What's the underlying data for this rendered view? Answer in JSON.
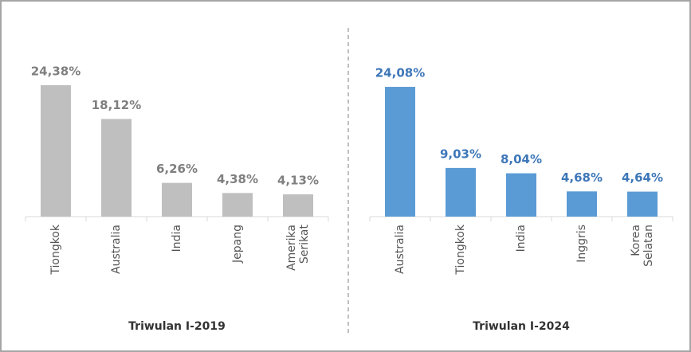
{
  "chart_data": [
    {
      "type": "bar",
      "title": "Triwulan I-2019",
      "categories": [
        "Tiongkok",
        "Australia",
        "India",
        "Jepang",
        "Amerika Serikat"
      ],
      "values": [
        24.38,
        18.12,
        6.26,
        4.38,
        4.13
      ],
      "value_labels": [
        "24,38%",
        "18,12%",
        "6,26%",
        "4,38%",
        "4,13%"
      ],
      "color": "#bfbfbf",
      "label_color": "#7f7f7f"
    },
    {
      "type": "bar",
      "title": "Triwulan I-2024",
      "categories": [
        "Australia",
        "Tiongkok",
        "India",
        "Inggris",
        "Korea Selatan"
      ],
      "values": [
        24.08,
        9.03,
        8.04,
        4.68,
        4.64
      ],
      "value_labels": [
        "24,08%",
        "9,03%",
        "8,04%",
        "4,68%",
        "4,64%"
      ],
      "color": "#5b9bd5",
      "label_color": "#3e77b8"
    }
  ]
}
